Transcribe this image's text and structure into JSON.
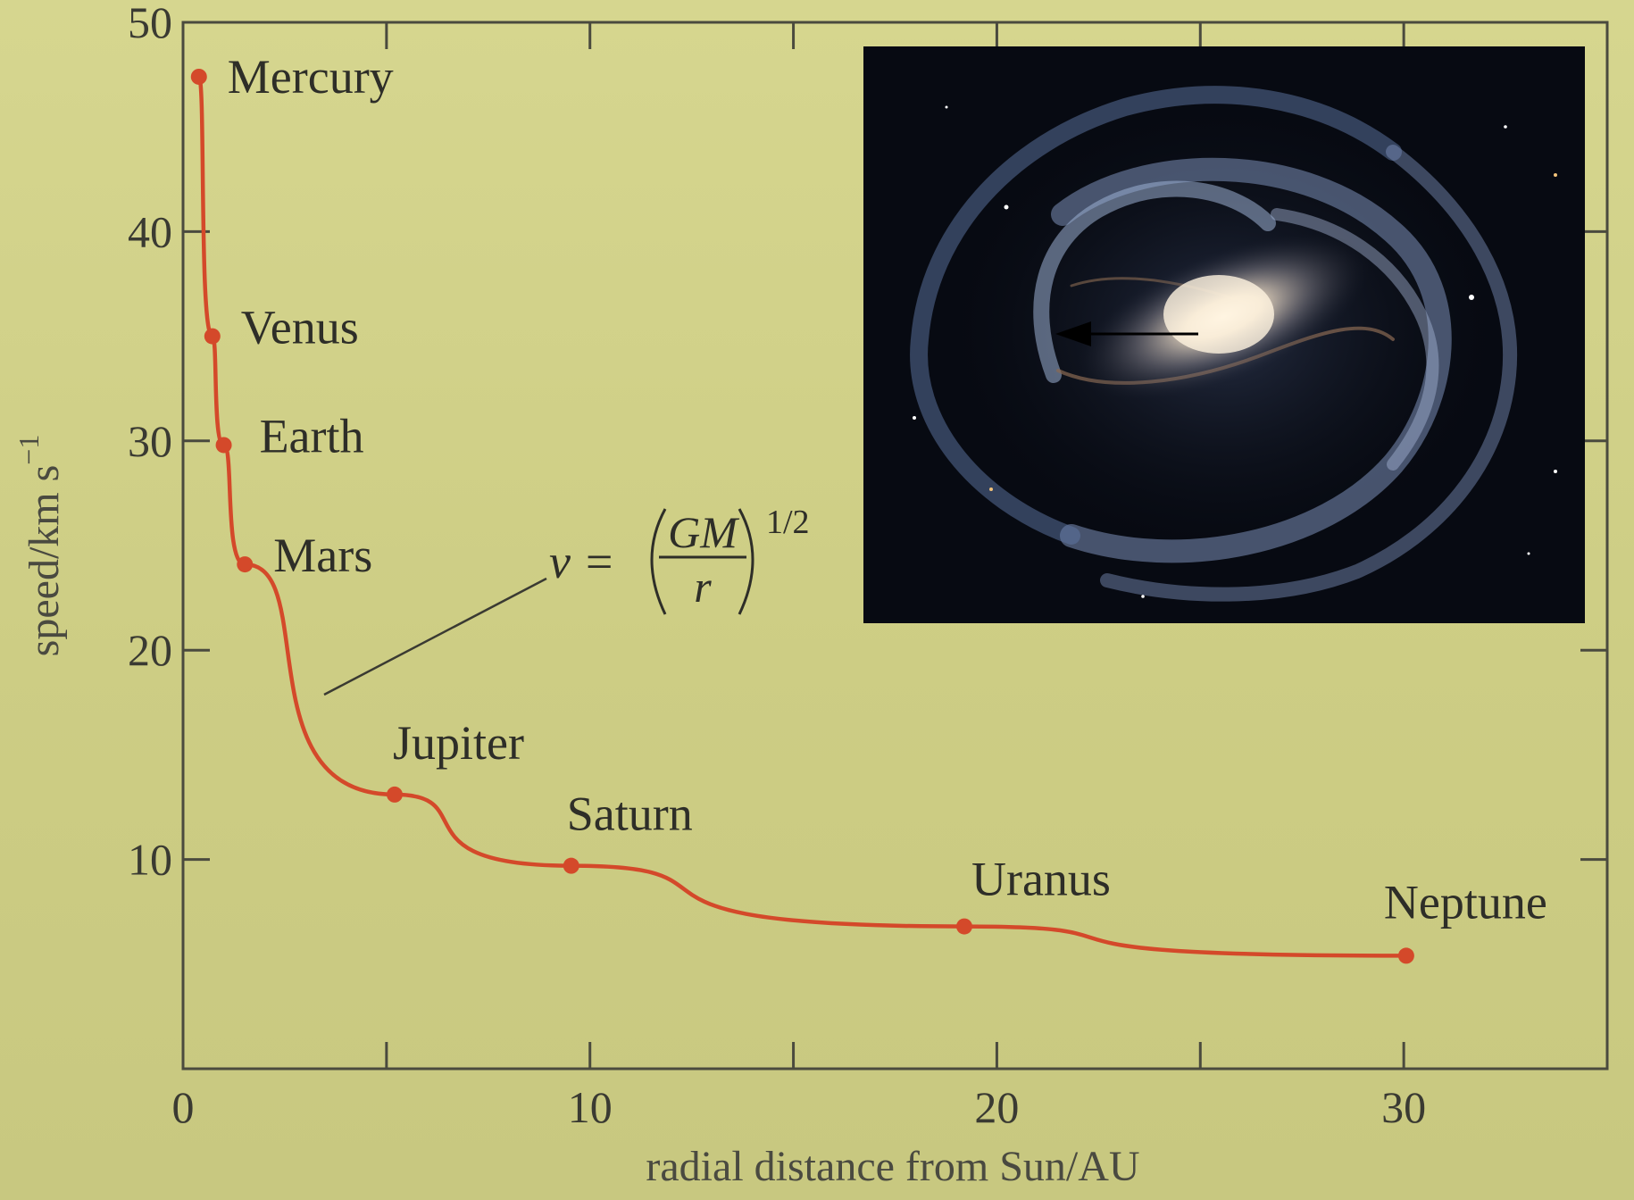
{
  "colors": {
    "background": "#cfcf86",
    "curve": "#d4492a",
    "axis": "#4a4a3e",
    "text": "#2e2e28"
  },
  "chart_data": {
    "type": "line",
    "title": "",
    "xlabel": "radial distance from Sun/AU",
    "ylabel": "speed/km s",
    "ylabel_superscript": "−1",
    "xlim": [
      0,
      35
    ],
    "ylim": [
      0,
      50
    ],
    "xticks": [
      0,
      10,
      20,
      30
    ],
    "xticks_minor": [
      5,
      15,
      25
    ],
    "yticks": [
      10,
      20,
      30,
      40,
      50
    ],
    "grid": false,
    "series": [
      {
        "points": [
          {
            "name": "Mercury",
            "x": 0.39,
            "y": 47.4
          },
          {
            "name": "Venus",
            "x": 0.72,
            "y": 35.0
          },
          {
            "name": "Earth",
            "x": 1.0,
            "y": 29.8
          },
          {
            "name": "Mars",
            "x": 1.52,
            "y": 24.1
          },
          {
            "name": "Jupiter",
            "x": 5.2,
            "y": 13.1
          },
          {
            "name": "Saturn",
            "x": 9.54,
            "y": 9.7
          },
          {
            "name": "Uranus",
            "x": 19.2,
            "y": 6.8
          },
          {
            "name": "Neptune",
            "x": 30.06,
            "y": 5.4
          }
        ]
      }
    ],
    "annotation": {
      "lhs": "v =",
      "numerator": "GM",
      "denominator": "r",
      "exponent": "1/2"
    },
    "inset_image": {
      "subject": "barred spiral galaxy",
      "icon": "galaxy-image",
      "arrow_icon": "arrow-left-icon"
    }
  }
}
